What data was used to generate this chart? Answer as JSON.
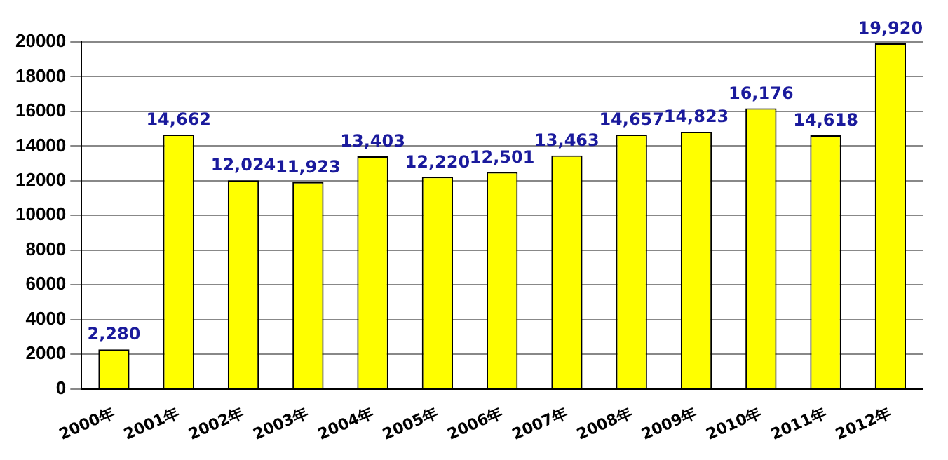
{
  "chart_data": {
    "type": "bar",
    "categories": [
      "2000年",
      "2001年",
      "2002年",
      "2003年",
      "2004年",
      "2005年",
      "2006年",
      "2007年",
      "2008年",
      "2009年",
      "2010年",
      "2011年",
      "2012年"
    ],
    "values": [
      2280,
      14662,
      12024,
      11923,
      13403,
      12220,
      12501,
      13463,
      14657,
      14823,
      16176,
      14618,
      19920
    ],
    "value_labels": [
      "2,280",
      "14,662",
      "12,024",
      "11,923",
      "13,403",
      "12,220",
      "12,501",
      "13,463",
      "14,657",
      "14,823",
      "16,176",
      "14,618",
      "19,920"
    ],
    "color": "#ffff00",
    "ylim": [
      0,
      20000
    ],
    "yticks": [
      0,
      2000,
      4000,
      6000,
      8000,
      10000,
      12000,
      14000,
      16000,
      18000,
      20000
    ],
    "grid": "y",
    "legend": false
  }
}
